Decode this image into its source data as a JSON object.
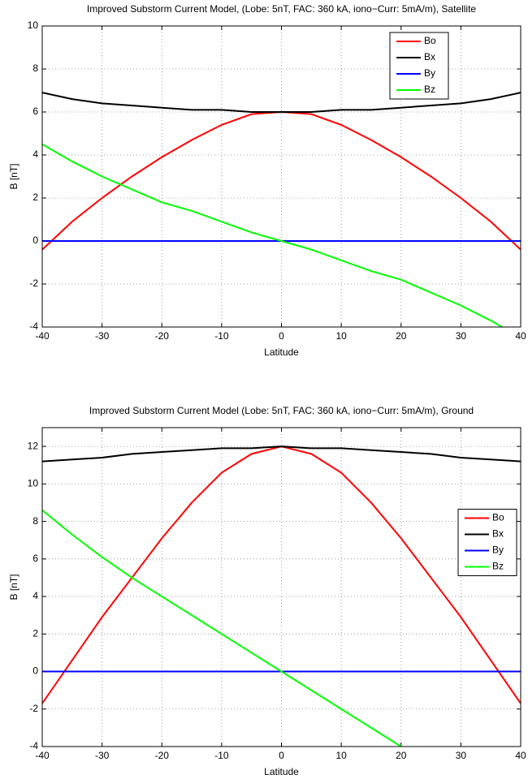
{
  "chart_data": [
    {
      "type": "line",
      "title": "Improved Substorm Current Model, (Lobe: 5nT, FAC: 360 kA, iono−Curr: 5mA/m), Satellite",
      "x_label": "Latitude",
      "y_label": "B [nT]",
      "x": [
        -40,
        -35,
        -30,
        -25,
        -20,
        -15,
        -10,
        -5,
        0,
        5,
        10,
        15,
        20,
        25,
        30,
        35,
        40
      ],
      "series": [
        {
          "name": "Bo",
          "color": "#ff0000",
          "values": [
            -0.4,
            0.9,
            2.0,
            3.0,
            3.9,
            4.7,
            5.4,
            5.9,
            6.0,
            5.9,
            5.4,
            4.7,
            3.9,
            3.0,
            2.0,
            0.9,
            -0.4
          ]
        },
        {
          "name": "Bx",
          "color": "#000000",
          "values": [
            6.9,
            6.6,
            6.4,
            6.3,
            6.2,
            6.1,
            6.1,
            6.0,
            6.0,
            6.0,
            6.1,
            6.1,
            6.2,
            6.3,
            6.4,
            6.6,
            6.9
          ]
        },
        {
          "name": "By",
          "color": "#0000ff",
          "values": [
            0,
            0,
            0,
            0,
            0,
            0,
            0,
            0,
            0,
            0,
            0,
            0,
            0,
            0,
            0,
            0,
            0
          ]
        },
        {
          "name": "Bz",
          "color": "#00ff00",
          "values": [
            4.5,
            3.7,
            3.0,
            2.4,
            1.8,
            1.4,
            0.9,
            0.4,
            0,
            -0.4,
            -0.9,
            -1.4,
            -1.8,
            -2.4,
            -3.0,
            -3.7,
            -4.5
          ]
        }
      ],
      "xlim": [
        -40,
        40
      ],
      "xticks": [
        -40,
        -30,
        -20,
        -10,
        0,
        10,
        20,
        30,
        40
      ],
      "ylim": [
        -4,
        10
      ],
      "yticks": [
        -4,
        -2,
        0,
        2,
        4,
        6,
        8,
        10
      ],
      "grid": true,
      "legend": "upper right"
    },
    {
      "type": "line",
      "title": "Improved Substorm Current Model (Lobe: 5nT, FAC: 360 kA, iono−Curr: 5mA/m),  Ground",
      "x_label": "Latitude",
      "y_label": "B [nT]",
      "x": [
        -40,
        -35,
        -30,
        -25,
        -20,
        -15,
        -10,
        -5,
        0,
        5,
        10,
        15,
        20,
        25,
        30,
        35,
        40
      ],
      "series": [
        {
          "name": "Bo",
          "color": "#ff0000",
          "values": [
            -1.7,
            0.6,
            2.9,
            5.0,
            7.1,
            9.0,
            10.6,
            11.6,
            12.0,
            11.6,
            10.6,
            9.0,
            7.1,
            5.0,
            2.9,
            0.6,
            -1.7
          ]
        },
        {
          "name": "Bx",
          "color": "#000000",
          "values": [
            11.2,
            11.3,
            11.4,
            11.6,
            11.7,
            11.8,
            11.9,
            11.9,
            12.0,
            11.9,
            11.9,
            11.8,
            11.7,
            11.6,
            11.4,
            11.3,
            11.2
          ]
        },
        {
          "name": "By",
          "color": "#0000ff",
          "values": [
            0,
            0,
            0,
            0,
            0,
            0,
            0,
            0,
            0,
            0,
            0,
            0,
            0,
            0,
            0,
            0,
            0
          ]
        },
        {
          "name": "Bz",
          "color": "#00ff00",
          "values": [
            8.6,
            7.3,
            6.1,
            5.0,
            4.0,
            3.0,
            2.0,
            1.0,
            0,
            -1.0,
            -2.0,
            -3.0,
            -4.0,
            null,
            null,
            null,
            null
          ]
        }
      ],
      "xlim": [
        -40,
        40
      ],
      "xticks": [
        -40,
        -30,
        -20,
        -10,
        0,
        10,
        20,
        30,
        40
      ],
      "ylim": [
        -4,
        13
      ],
      "yticks": [
        -4,
        -2,
        0,
        2,
        4,
        6,
        8,
        10,
        12
      ],
      "grid": true,
      "legend": "right"
    }
  ]
}
